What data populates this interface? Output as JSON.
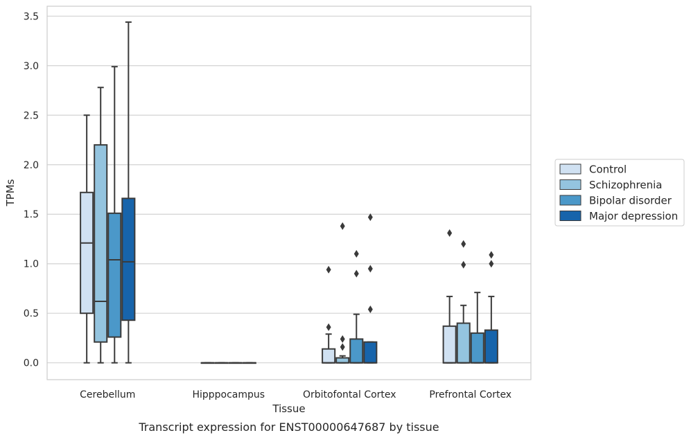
{
  "chart_data": {
    "type": "boxplot",
    "caption": "Transcript expression for ENST00000647687 by tissue",
    "xlabel": "Tissue",
    "ylabel": "TPMs",
    "ylim": [
      -0.17,
      3.6
    ],
    "yticks": [
      "0.0",
      "0.5",
      "1.0",
      "1.5",
      "2.0",
      "2.5",
      "3.0",
      "3.5"
    ],
    "grid": true,
    "legend_position": "right-center",
    "categories": [
      "Cerebellum",
      "Hipppocampus",
      "Orbitofontal Cortex",
      "Prefrontal Cortex"
    ],
    "series": [
      {
        "name": "Control",
        "color": "#d0e1f2",
        "boxes": [
          {
            "whisker_low": 0.0,
            "q1": 0.5,
            "median": 1.21,
            "q3": 1.72,
            "whisker_high": 2.5,
            "outliers": []
          },
          {
            "whisker_low": 0.0,
            "q1": 0.0,
            "median": 0.0,
            "q3": 0.0,
            "whisker_high": 0.0,
            "outliers": []
          },
          {
            "whisker_low": 0.0,
            "q1": 0.0,
            "median": 0.0,
            "q3": 0.14,
            "whisker_high": 0.29,
            "outliers": [
              0.36,
              0.94
            ]
          },
          {
            "whisker_low": 0.0,
            "q1": 0.0,
            "median": 0.0,
            "q3": 0.37,
            "whisker_high": 0.67,
            "outliers": [
              1.31
            ]
          }
        ]
      },
      {
        "name": "Schizophrenia",
        "color": "#94c4df",
        "boxes": [
          {
            "whisker_low": 0.0,
            "q1": 0.21,
            "median": 0.62,
            "q3": 2.2,
            "whisker_high": 2.78,
            "outliers": []
          },
          {
            "whisker_low": 0.0,
            "q1": 0.0,
            "median": 0.0,
            "q3": 0.0,
            "whisker_high": 0.0,
            "outliers": []
          },
          {
            "whisker_low": 0.0,
            "q1": 0.0,
            "median": 0.0,
            "q3": 0.05,
            "whisker_high": 0.07,
            "outliers": [
              0.16,
              0.24,
              1.38
            ]
          },
          {
            "whisker_low": 0.0,
            "q1": 0.0,
            "median": 0.0,
            "q3": 0.4,
            "whisker_high": 0.58,
            "outliers": [
              0.99,
              1.2
            ]
          }
        ]
      },
      {
        "name": "Bipolar disorder",
        "color": "#4b98c9",
        "boxes": [
          {
            "whisker_low": 0.0,
            "q1": 0.26,
            "median": 1.04,
            "q3": 1.51,
            "whisker_high": 2.99,
            "outliers": []
          },
          {
            "whisker_low": 0.0,
            "q1": 0.0,
            "median": 0.0,
            "q3": 0.0,
            "whisker_high": 0.0,
            "outliers": []
          },
          {
            "whisker_low": 0.0,
            "q1": 0.0,
            "median": 0.0,
            "q3": 0.24,
            "whisker_high": 0.49,
            "outliers": [
              0.9,
              1.1
            ]
          },
          {
            "whisker_low": 0.0,
            "q1": 0.0,
            "median": 0.0,
            "q3": 0.3,
            "whisker_high": 0.71,
            "outliers": []
          }
        ]
      },
      {
        "name": "Major depression",
        "color": "#1764ab",
        "boxes": [
          {
            "whisker_low": 0.0,
            "q1": 0.43,
            "median": 1.02,
            "q3": 1.66,
            "whisker_high": 3.44,
            "outliers": []
          },
          {
            "whisker_low": 0.0,
            "q1": 0.0,
            "median": 0.0,
            "q3": 0.0,
            "whisker_high": 0.0,
            "outliers": []
          },
          {
            "whisker_low": 0.0,
            "q1": 0.0,
            "median": 0.0,
            "q3": 0.21,
            "whisker_high": 0.21,
            "outliers": [
              0.54,
              0.95,
              1.47
            ]
          },
          {
            "whisker_low": 0.0,
            "q1": 0.0,
            "median": 0.0,
            "q3": 0.33,
            "whisker_high": 0.67,
            "outliers": [
              1.0,
              1.09
            ]
          }
        ]
      }
    ]
  }
}
